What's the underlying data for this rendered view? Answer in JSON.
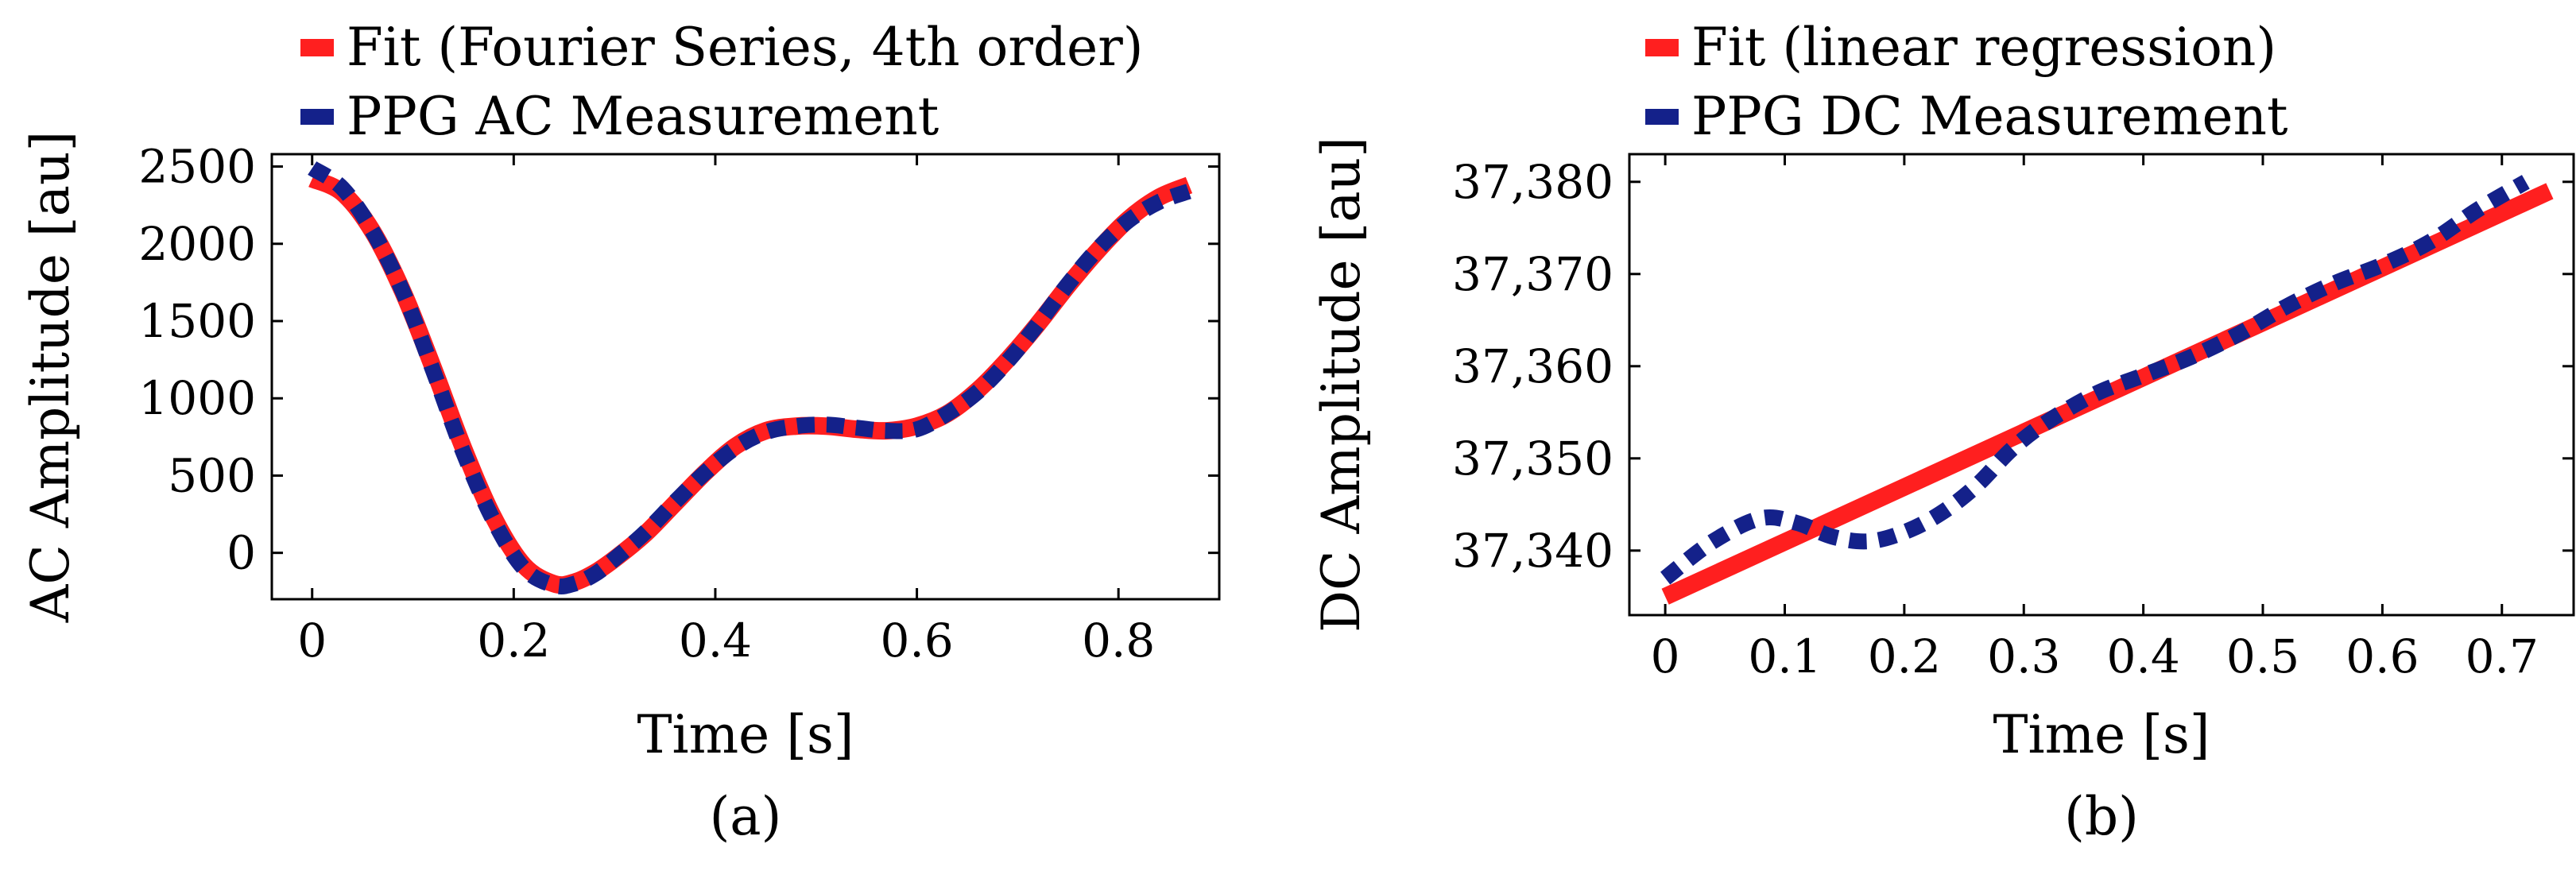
{
  "colors": {
    "fit": "#ff1f1f",
    "measurement": "#14218a"
  },
  "chart_data": [
    {
      "type": "line",
      "panel": "a",
      "caption": "(a)",
      "xlabel": "Time [s]",
      "ylabel": "AC Amplitude [au]",
      "xlim": [
        -0.04,
        0.9
      ],
      "ylim": [
        -300,
        2580
      ],
      "xticks": [
        0,
        0.2,
        0.4,
        0.6,
        0.8
      ],
      "xtick_labels": [
        "0",
        "0.2",
        "0.4",
        "0.6",
        "0.8"
      ],
      "yticks": [
        0,
        500,
        1000,
        1500,
        2000,
        2500
      ],
      "ytick_labels": [
        "0",
        "500",
        "1000",
        "1500",
        "2000",
        "2500"
      ],
      "legend_position": "top-left, above axes",
      "series": [
        {
          "name": "Fit (Fourier Series, 4th order)",
          "style": "solid",
          "x": [
            0,
            0.03,
            0.06,
            0.09,
            0.12,
            0.15,
            0.18,
            0.21,
            0.24,
            0.26,
            0.28,
            0.3,
            0.33,
            0.36,
            0.39,
            0.42,
            0.45,
            0.48,
            0.51,
            0.54,
            0.57,
            0.6,
            0.63,
            0.66,
            0.69,
            0.72,
            0.75,
            0.78,
            0.81,
            0.84,
            0.87
          ],
          "y": [
            2420,
            2330,
            2080,
            1690,
            1200,
            680,
            230,
            -80,
            -200,
            -190,
            -130,
            -40,
            120,
            320,
            520,
            690,
            790,
            820,
            820,
            800,
            790,
            820,
            900,
            1050,
            1250,
            1480,
            1730,
            1960,
            2160,
            2300,
            2380
          ]
        },
        {
          "name": "PPG AC Measurement",
          "style": "dashed",
          "x": [
            0,
            0.03,
            0.06,
            0.09,
            0.12,
            0.15,
            0.18,
            0.21,
            0.24,
            0.26,
            0.28,
            0.3,
            0.33,
            0.36,
            0.39,
            0.42,
            0.45,
            0.48,
            0.51,
            0.54,
            0.57,
            0.6,
            0.63,
            0.66,
            0.69,
            0.72,
            0.75,
            0.78,
            0.81,
            0.84,
            0.87
          ],
          "y": [
            2490,
            2360,
            2080,
            1690,
            1180,
            650,
            210,
            -100,
            -210,
            -200,
            -140,
            -40,
            130,
            330,
            520,
            680,
            780,
            820,
            830,
            810,
            790,
            800,
            900,
            1040,
            1240,
            1480,
            1740,
            1970,
            2150,
            2270,
            2340
          ]
        }
      ]
    },
    {
      "type": "line",
      "panel": "b",
      "caption": "(b)",
      "xlabel": "Time [s]",
      "ylabel": "DC Amplitude [au]",
      "xlim": [
        -0.03,
        0.76
      ],
      "ylim": [
        37333,
        37383
      ],
      "xticks": [
        0,
        0.1,
        0.2,
        0.3,
        0.4,
        0.5,
        0.6,
        0.7
      ],
      "xtick_labels": [
        "0",
        "0.1",
        "0.2",
        "0.3",
        "0.4",
        "0.5",
        "0.6",
        "0.7"
      ],
      "yticks": [
        37340,
        37350,
        37360,
        37370,
        37380
      ],
      "ytick_labels": [
        "37,340",
        "37,350",
        "37,360",
        "37,370",
        "37,380"
      ],
      "legend_position": "top-left, above axes",
      "series": [
        {
          "name": "Fit (linear regression)",
          "style": "solid",
          "x": [
            0,
            0.74
          ],
          "y": [
            37335,
            37379
          ]
        },
        {
          "name": "PPG DC Measurement",
          "style": "dashed",
          "x": [
            0,
            0.04,
            0.08,
            0.11,
            0.14,
            0.17,
            0.2,
            0.23,
            0.26,
            0.29,
            0.32,
            0.36,
            0.4,
            0.44,
            0.48,
            0.52,
            0.56,
            0.6,
            0.64,
            0.68,
            0.72
          ],
          "y": [
            37337,
            37341,
            37343.5,
            37343,
            37341.5,
            37341,
            37342,
            37344,
            37347,
            37351,
            37354,
            37357,
            37359,
            37361,
            37363.5,
            37366.5,
            37369,
            37371,
            37373.5,
            37377,
            37380
          ]
        }
      ]
    }
  ]
}
